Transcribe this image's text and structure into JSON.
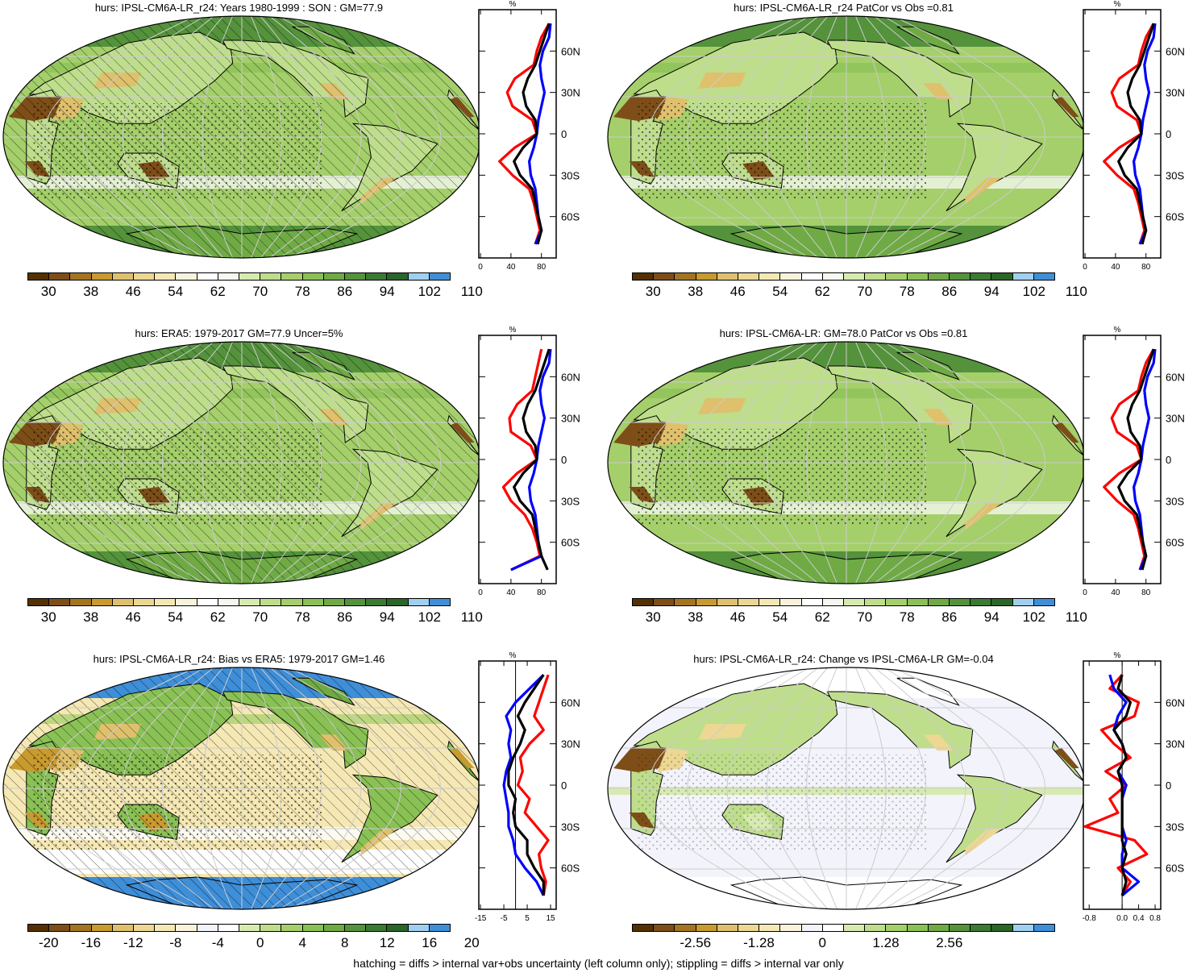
{
  "colors": {
    "abs": [
      "#543005",
      "#7e4e18",
      "#a4741f",
      "#c99a2e",
      "#dfc06d",
      "#ecd793",
      "#f5e8b4",
      "#faf3dc",
      "#ffffff",
      "#f4f8ee",
      "#d7ebb1",
      "#bede8c",
      "#a4cf6a",
      "#8ac155",
      "#6faa45",
      "#54923b",
      "#3b7a33",
      "#2a6628",
      "#9fd0f0",
      "#3e8ed8"
    ],
    "diff": [
      "#543005",
      "#7e4e18",
      "#a4741f",
      "#c99a2e",
      "#dfc06d",
      "#ecd793",
      "#f5e8b4",
      "#faf3dc",
      "#f3f3fb",
      "#ffffff",
      "#d7ebb1",
      "#bede8c",
      "#a4cf6a",
      "#8ac155",
      "#6faa45",
      "#54923b",
      "#3b7a33",
      "#2a6628",
      "#9fd0f0",
      "#3e8ed8"
    ],
    "model_line": "#0000ff",
    "obs_line": "#ff0000",
    "mmm_line": "#000000"
  },
  "colorbars": {
    "abs": [
      "30",
      "38",
      "46",
      "54",
      "62",
      "70",
      "78",
      "86",
      "94",
      "102",
      "110"
    ],
    "bias": [
      "-20",
      "-16",
      "-12",
      "-8",
      "-4",
      "0",
      "4",
      "8",
      "12",
      "16",
      "20"
    ],
    "change": [
      "-2.56",
      "-1.28",
      "0",
      "1.28",
      "2.56"
    ]
  },
  "profile_lat_labels": [
    "60N",
    "30N",
    "0",
    "30S",
    "60S"
  ],
  "profile_unit": "%",
  "panels": [
    {
      "title": "hurs: IPSL-CM6A-LR_r24: Years 1980-1999 : SON : GM=77.9",
      "profile_ticks": [
        "0",
        "40",
        "80"
      ],
      "profile": {
        "lat": [
          80,
          70,
          60,
          50,
          40,
          30,
          20,
          10,
          0,
          -10,
          -20,
          -30,
          -40,
          -50,
          -60,
          -70,
          -80
        ],
        "red": [
          90,
          80,
          74,
          70,
          45,
          35,
          42,
          68,
          74,
          45,
          25,
          42,
          64,
          70,
          74,
          78,
          72
        ],
        "blue": [
          92,
          90,
          82,
          78,
          80,
          84,
          80,
          76,
          74,
          70,
          64,
          66,
          72,
          74,
          76,
          80,
          72
        ],
        "black": [
          90,
          84,
          78,
          72,
          62,
          56,
          60,
          72,
          74,
          56,
          44,
          52,
          68,
          72,
          76,
          80,
          75
        ]
      }
    },
    {
      "title": "hurs: IPSL-CM6A-LR_r24 PatCor vs Obs =0.81",
      "profile_ticks": [
        "0",
        "40",
        "80"
      ],
      "profile": {
        "lat": [
          80,
          70,
          60,
          50,
          40,
          30,
          20,
          10,
          0,
          -10,
          -20,
          -30,
          -40,
          -50,
          -60,
          -70,
          -80
        ],
        "red": [
          90,
          80,
          74,
          70,
          45,
          35,
          42,
          68,
          74,
          45,
          25,
          42,
          64,
          70,
          74,
          78,
          72
        ],
        "blue": [
          92,
          90,
          82,
          78,
          80,
          84,
          80,
          76,
          74,
          70,
          64,
          66,
          72,
          74,
          76,
          80,
          72
        ],
        "black": [
          90,
          84,
          78,
          72,
          62,
          56,
          60,
          72,
          74,
          56,
          44,
          52,
          68,
          72,
          76,
          80,
          75
        ]
      }
    },
    {
      "title": "hurs: ERA5: 1979-2017 GM=77.9 Uncer=5%",
      "profile_ticks": [
        "0",
        "40",
        "80"
      ],
      "profile": {
        "lat": [
          80,
          70,
          60,
          50,
          40,
          30,
          20,
          10,
          0,
          -10,
          -20,
          -30,
          -40,
          -50,
          -60,
          -70,
          -80
        ],
        "red": [
          80,
          76,
          72,
          68,
          48,
          38,
          40,
          66,
          74,
          48,
          30,
          40,
          58,
          68,
          74,
          78,
          40
        ],
        "blue": [
          92,
          90,
          82,
          78,
          80,
          84,
          80,
          76,
          74,
          70,
          64,
          66,
          72,
          74,
          76,
          80,
          40
        ],
        "black": [
          90,
          84,
          78,
          72,
          62,
          56,
          60,
          72,
          74,
          56,
          44,
          52,
          68,
          72,
          76,
          80,
          88
        ]
      }
    },
    {
      "title": "hurs: IPSL-CM6A-LR: GM=78.0 PatCor vs Obs =0.81",
      "profile_ticks": [
        "0",
        "40",
        "80"
      ],
      "profile": {
        "lat": [
          80,
          70,
          60,
          50,
          40,
          30,
          20,
          10,
          0,
          -10,
          -20,
          -30,
          -40,
          -50,
          -60,
          -70,
          -80
        ],
        "red": [
          90,
          80,
          74,
          70,
          45,
          35,
          42,
          68,
          74,
          45,
          25,
          42,
          64,
          70,
          74,
          78,
          72
        ],
        "blue": [
          92,
          90,
          82,
          78,
          80,
          84,
          80,
          76,
          74,
          70,
          64,
          66,
          72,
          74,
          76,
          80,
          72
        ],
        "black": [
          90,
          84,
          78,
          72,
          62,
          56,
          60,
          72,
          74,
          56,
          44,
          52,
          68,
          72,
          76,
          80,
          75
        ]
      }
    },
    {
      "title": "hurs: IPSL-CM6A-LR_r24: Bias vs ERA5: 1979-2017  GM=1.46",
      "profile_ticks": [
        "-15",
        "-5",
        "5",
        "15"
      ],
      "profile": {
        "lat": [
          80,
          70,
          60,
          50,
          40,
          30,
          20,
          10,
          0,
          -10,
          -20,
          -30,
          -40,
          -50,
          -60,
          -70,
          -80
        ],
        "red": [
          14,
          12,
          10,
          8,
          12,
          6,
          2,
          3,
          1,
          6,
          4,
          9,
          14,
          10,
          11,
          13,
          12
        ],
        "blue": [
          12,
          6,
          0,
          -4,
          -2,
          -3,
          -2,
          -4,
          -5,
          -4,
          -3,
          -3,
          -1,
          0,
          4,
          9,
          12
        ],
        "black": [
          12,
          8,
          4,
          1,
          4,
          2,
          -1,
          -3,
          -3,
          0,
          -1,
          0,
          5,
          5,
          8,
          12,
          12
        ]
      }
    },
    {
      "title": "hurs: IPSL-CM6A-LR_r24: Change vs IPSL-CM6A-LR GM=-0.04",
      "profile_ticks": [
        "-0.8",
        "0.0",
        "0.4",
        "0.8"
      ],
      "profile": {
        "lat": [
          80,
          70,
          60,
          50,
          40,
          30,
          20,
          10,
          0,
          -10,
          -20,
          -30,
          -40,
          -50,
          -60,
          -70,
          -80
        ],
        "red": [
          0.0,
          -0.3,
          0.4,
          0.3,
          -0.5,
          -0.2,
          0.2,
          -0.4,
          0.1,
          -0.3,
          -0.1,
          -0.9,
          0.3,
          0.6,
          -0.1,
          0.2,
          0.0
        ],
        "blue": [
          -0.3,
          -0.2,
          0.1,
          -0.1,
          -0.2,
          0.0,
          0.1,
          -0.1,
          0.1,
          0.0,
          0.0,
          0.0,
          0.1,
          0.0,
          0.0,
          0.4,
          0.0
        ],
        "black": [
          0.0,
          -0.1,
          0.2,
          0.1,
          -0.2,
          0.0,
          0.1,
          -0.1,
          0.0,
          0.0,
          0.0,
          0.0,
          0.0,
          0.1,
          0.0,
          0.1,
          0.0
        ]
      }
    }
  ],
  "footer": "hatching = diffs > internal var+obs uncertainty (left column only); stippling = diffs > internal var only"
}
